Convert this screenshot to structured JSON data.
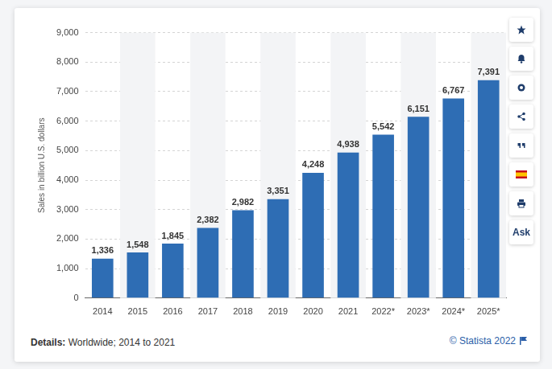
{
  "chart_data": {
    "type": "bar",
    "y_label": "Sales in billion U.S. dollars",
    "categories": [
      "2014",
      "2015",
      "2016",
      "2017",
      "2018",
      "2019",
      "2020",
      "2021",
      "2022*",
      "2023*",
      "2024*",
      "2025*"
    ],
    "values": [
      1336,
      1548,
      1845,
      2382,
      2982,
      3351,
      4248,
      4938,
      5542,
      6151,
      6767,
      7391
    ],
    "value_labels": [
      "1,336",
      "1,548",
      "1,845",
      "2,382",
      "2,982",
      "3,351",
      "4,248",
      "4,938",
      "5,542",
      "6,151",
      "6,767",
      "7,391"
    ],
    "data_labels": true,
    "color": "#2e6db4",
    "ylim": [
      0,
      9000
    ],
    "yticks": [
      0,
      {
        "value": 1000,
        "label": "1,000"
      },
      {
        "value": 2000,
        "label": "2,000"
      },
      {
        "value": 3000,
        "label": "3,000"
      },
      {
        "value": 4000,
        "label": "4,000"
      },
      {
        "value": 5000,
        "label": "5,000"
      },
      {
        "value": 6000,
        "label": "6,000"
      },
      {
        "value": 7000,
        "label": "7,000"
      },
      {
        "value": 8000,
        "label": "8,000"
      },
      {
        "value": 9000,
        "label": "9,000"
      }
    ],
    "grid": true
  },
  "page": {
    "details_label": "Details:",
    "details": "Worldwide; 2014 to 2021",
    "source": "© Statista 2022",
    "ask": "Ask"
  }
}
